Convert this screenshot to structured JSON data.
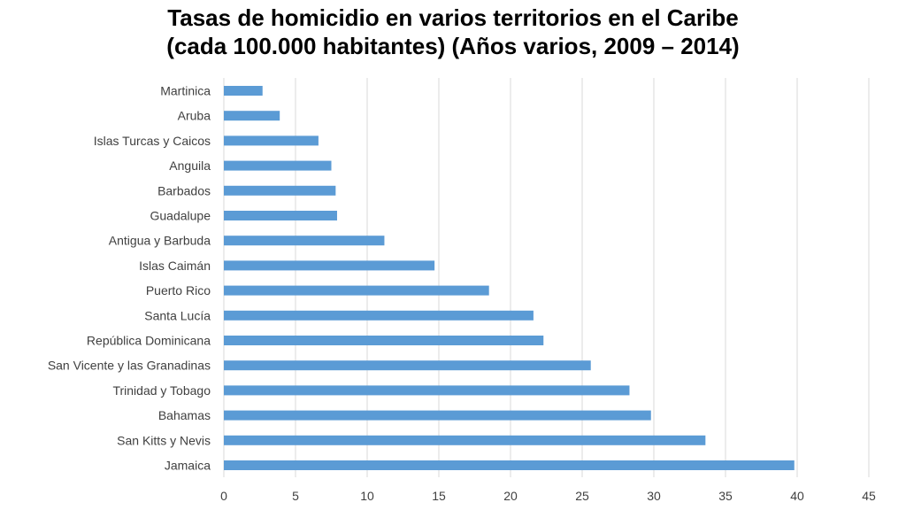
{
  "chart_data": {
    "type": "bar",
    "orientation": "horizontal",
    "title_line1": "Tasas de homicidio en varios territorios en el Caribe",
    "title_line2": "(cada 100.000 habitantes) (Años varios, 2009 – 2014)",
    "xlabel": "",
    "ylabel": "",
    "xlim": [
      0,
      45
    ],
    "xticks": [
      0,
      5,
      10,
      15,
      20,
      25,
      30,
      35,
      40,
      45
    ],
    "grid": true,
    "legend": "none",
    "categories": [
      "Martinica",
      "Aruba",
      "Islas Turcas y Caicos",
      "Anguila",
      "Barbados",
      "Guadalupe",
      "Antigua y Barbuda",
      "Islas Caimán",
      "Puerto Rico",
      "Santa Lucía",
      "República Dominicana",
      "San Vicente y las Granadinas",
      "Trinidad y Tobago",
      "Bahamas",
      "San Kitts y Nevis",
      "Jamaica"
    ],
    "values": [
      2.7,
      3.9,
      6.6,
      7.5,
      7.8,
      7.9,
      11.2,
      14.7,
      18.5,
      21.6,
      22.3,
      25.6,
      28.3,
      29.8,
      33.6,
      39.8
    ],
    "bar_color": "#5B9BD5",
    "grid_color": "#D9D9D9"
  }
}
